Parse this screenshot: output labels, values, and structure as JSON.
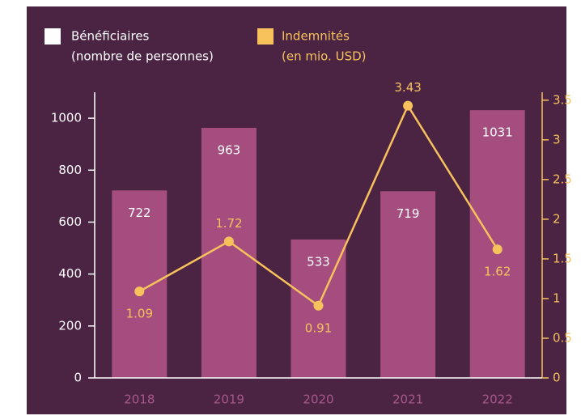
{
  "chart_data": {
    "type": "bar_line",
    "categories": [
      "2018",
      "2019",
      "2020",
      "2021",
      "2022"
    ],
    "series": [
      {
        "name": "Bénéficiaires",
        "unit": "(nombre de personnes)",
        "type": "bar",
        "color": "#a54d7e",
        "values": [
          722,
          963,
          533,
          719,
          1031
        ]
      },
      {
        "name": "Indemnités",
        "unit": "(en mio. USD)",
        "type": "line",
        "axis": "y2",
        "color": "#f7c25c",
        "values": [
          1.09,
          1.72,
          0.91,
          3.43,
          1.62
        ]
      }
    ],
    "ylim": [
      0,
      1100
    ],
    "yticks": [
      0,
      200,
      400,
      600,
      800,
      1000
    ],
    "y2lim": [
      0,
      3.6
    ],
    "y2ticks": [
      0,
      0.5,
      1,
      1.5,
      2,
      2.5,
      3,
      3.5
    ]
  }
}
